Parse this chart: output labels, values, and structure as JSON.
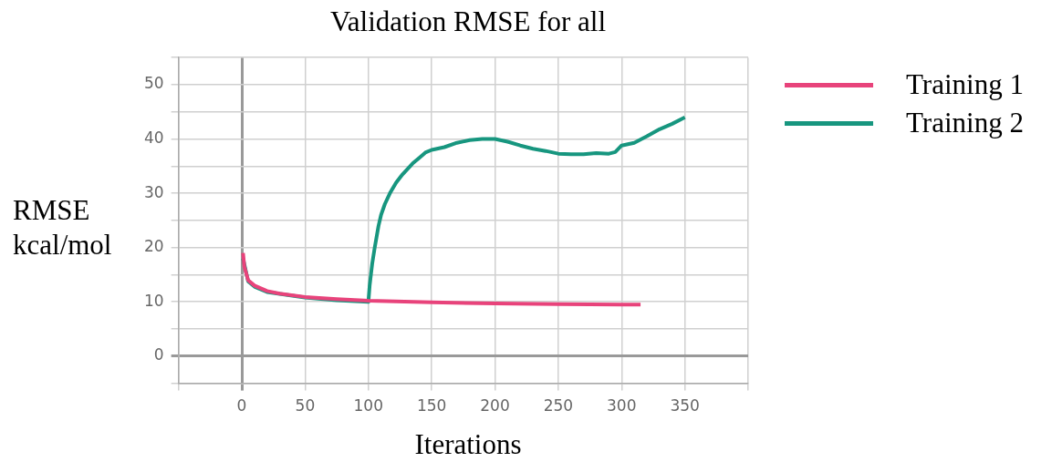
{
  "chart_data": {
    "type": "line",
    "title": "Validation RMSE for all",
    "xlabel": "Iterations",
    "ylabel": "RMSE kcal/mol",
    "xlim": [
      -50,
      400
    ],
    "xticks": [
      {
        "value": -50,
        "label": null
      },
      0,
      50,
      100,
      150,
      200,
      250,
      300,
      350,
      {
        "value": 400,
        "label": null
      }
    ],
    "ylim": [
      -5,
      55
    ],
    "yticks": [
      {
        "value": -5,
        "label": null
      },
      0,
      {
        "value": 5,
        "label": null
      },
      10,
      {
        "value": 15,
        "label": null
      },
      20,
      {
        "value": 25,
        "label": null
      },
      30,
      {
        "value": 35,
        "label": null
      },
      40,
      {
        "value": 45,
        "label": null
      },
      50,
      {
        "value": 55,
        "label": null
      }
    ],
    "grid": true,
    "legend": "right",
    "marker": "none",
    "line_style": "solid",
    "series": [
      {
        "name": "Training 1",
        "color": "#e8437b",
        "x": [
          1,
          2,
          5,
          10,
          20,
          30,
          50,
          75,
          100,
          150,
          200,
          250,
          300,
          315
        ],
        "values": [
          19,
          16.5,
          14,
          13,
          12,
          11.5,
          10.9,
          10.5,
          10.2,
          9.9,
          9.7,
          9.6,
          9.5,
          9.5
        ]
      },
      {
        "name": "Training 2",
        "color": "#17967f",
        "x": [
          1,
          5,
          10,
          20,
          50,
          75,
          100,
          101,
          103,
          105,
          108,
          110,
          113,
          117,
          122,
          127,
          135,
          140,
          145,
          150,
          160,
          170,
          180,
          190,
          200,
          210,
          220,
          230,
          240,
          250,
          260,
          270,
          280,
          290,
          295,
          300,
          310,
          320,
          330,
          340,
          350
        ],
        "values": [
          18,
          13.8,
          12.8,
          11.8,
          10.8,
          10.3,
          10,
          13,
          17,
          20,
          24,
          26,
          28,
          30,
          32,
          33.5,
          35.5,
          36.5,
          37.5,
          38,
          38.5,
          39.3,
          39.8,
          40,
          40,
          39.5,
          38.8,
          38.2,
          37.8,
          37.3,
          37.2,
          37.2,
          37.4,
          37.3,
          37.6,
          38.8,
          39.3,
          40.5,
          41.8,
          42.8,
          44
        ]
      }
    ]
  }
}
